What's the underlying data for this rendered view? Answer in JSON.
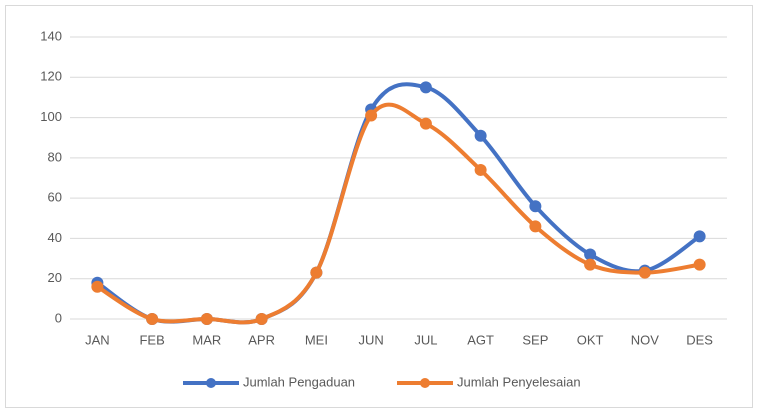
{
  "chart_data": {
    "type": "line",
    "categories": [
      "JAN",
      "FEB",
      "MAR",
      "APR",
      "MEI",
      "JUN",
      "JUL",
      "AGT",
      "SEP",
      "OKT",
      "NOV",
      "DES"
    ],
    "series": [
      {
        "name": "Jumlah Pengaduan",
        "color": "#4472c4",
        "values": [
          18,
          0,
          0,
          0,
          23,
          104,
          115,
          91,
          56,
          32,
          24,
          41
        ]
      },
      {
        "name": "Jumlah Penyelesaian",
        "color": "#ed7d31",
        "values": [
          16,
          0,
          0,
          0,
          23,
          101,
          97,
          74,
          46,
          27,
          23,
          27
        ]
      }
    ],
    "ylim": [
      0,
      140
    ],
    "yticks": [
      0,
      20,
      40,
      60,
      80,
      100,
      120,
      140
    ],
    "grid": true,
    "legend": "bottom",
    "smooth": true
  }
}
